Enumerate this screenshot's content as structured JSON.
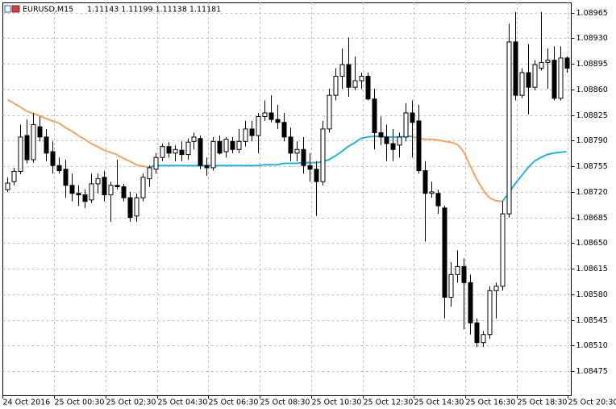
{
  "chart_data": {
    "type": "candlestick",
    "header": {
      "symbol": "EURUSD,M15",
      "quote": "1.11143 1.11199 1.11138 1.11181"
    },
    "up_color": "#ffffff",
    "down_color": "#000000",
    "outline_color": "#000000",
    "grid": true,
    "xlim": [
      -0.75,
      87.75
    ],
    "xticks": [
      {
        "value": 0,
        "label": "24 Oct 2016"
      },
      {
        "value": 8,
        "label": "25 Oct 00:30"
      },
      {
        "value": 16,
        "label": "25 Oct 02:30"
      },
      {
        "value": 24,
        "label": "25 Oct 04:30"
      },
      {
        "value": 32,
        "label": "25 Oct 06:30"
      },
      {
        "value": 40,
        "label": "25 Oct 08:30"
      },
      {
        "value": 48,
        "label": "25 Oct 10:30"
      },
      {
        "value": 56,
        "label": "25 Oct 12:30"
      },
      {
        "value": 64,
        "label": "25 Oct 14:30"
      },
      {
        "value": 72,
        "label": "25 Oct 16:30"
      },
      {
        "value": 80,
        "label": "25 Oct 18:30"
      },
      {
        "value": 88,
        "label": "25 Oct 20:30"
      }
    ],
    "ylim": [
      1.08442,
      1.08979
    ],
    "yticks": [
      1.08475,
      {
        "value": 1.0851,
        "label": "1.08510"
      },
      1.08545,
      {
        "value": 1.0858,
        "label": "1.08580"
      },
      1.08615,
      {
        "value": 1.0865,
        "label": "1.08650"
      },
      1.08685,
      {
        "value": 1.0872,
        "label": "1.08720"
      },
      1.08755,
      {
        "value": 1.0879,
        "label": "1.08790"
      },
      1.08825,
      {
        "value": 1.0886,
        "label": "1.08860"
      },
      1.08895,
      {
        "value": 1.0893,
        "label": "1.08930"
      },
      1.08965
    ],
    "open": [
      1.08723,
      1.08734,
      1.08748,
      1.08797,
      1.08764,
      1.08809,
      1.08795,
      1.08775,
      1.08756,
      1.08751,
      1.08729,
      1.08718,
      1.08716,
      1.08709,
      1.08731,
      1.0874,
      1.08716,
      1.08729,
      1.08727,
      1.08712,
      1.08687,
      1.08712,
      1.08738,
      1.08751,
      1.08767,
      1.08782,
      1.08773,
      1.08777,
      1.08771,
      1.08789,
      1.08793,
      1.08756,
      1.08753,
      1.08789,
      1.08775,
      1.08789,
      1.08778,
      1.08789,
      1.08806,
      1.08797,
      1.08823,
      1.08828,
      1.08819,
      1.08815,
      1.08795,
      1.08773,
      1.08778,
      1.08756,
      1.08751,
      1.08734,
      1.08806,
      1.08852,
      1.08878,
      1.08894,
      1.08863,
      1.08872,
      1.08878,
      1.08847,
      1.08801,
      1.08795,
      1.08786,
      1.08784,
      1.08795,
      1.08828,
      1.08817,
      1.08749,
      1.08718,
      1.08718,
      1.08698,
      1.08576,
      1.08607,
      1.08618,
      1.08596,
      1.08541,
      1.08514,
      1.08525,
      1.08585,
      1.08591,
      1.0869,
      1.08925,
      1.08852,
      1.08883,
      1.08863,
      1.08889,
      1.08897,
      1.089,
      1.08848,
      1.08903
    ],
    "high": [
      1.0874,
      1.08753,
      1.08812,
      1.08819,
      1.08828,
      1.08823,
      1.08806,
      1.08789,
      1.08767,
      1.08764,
      1.08745,
      1.08729,
      1.08723,
      1.08745,
      1.08745,
      1.08749,
      1.08734,
      1.08764,
      1.08731,
      1.0872,
      1.08718,
      1.08745,
      1.08756,
      1.08773,
      1.08786,
      1.08788,
      1.08784,
      1.08789,
      1.08793,
      1.08801,
      1.08797,
      1.08767,
      1.08795,
      1.08797,
      1.08795,
      1.08795,
      1.08806,
      1.08817,
      1.08817,
      1.08828,
      1.08845,
      1.08852,
      1.08839,
      1.08828,
      1.08808,
      1.08789,
      1.08795,
      1.08773,
      1.08762,
      1.08817,
      1.08861,
      1.08889,
      1.08916,
      1.08931,
      1.08905,
      1.08883,
      1.08883,
      1.08861,
      1.08823,
      1.08812,
      1.08806,
      1.08801,
      1.08841,
      1.08845,
      1.08839,
      1.08762,
      1.08734,
      1.08723,
      1.08701,
      1.08624,
      1.0864,
      1.08629,
      1.08607,
      1.08547,
      1.0853,
      1.08591,
      1.08596,
      1.08707,
      1.0895,
      1.08966,
      1.08889,
      1.08922,
      1.089,
      1.08966,
      1.08916,
      1.08919,
      1.08919,
      1.08905
    ],
    "low": [
      1.0872,
      1.08729,
      1.08744,
      1.08759,
      1.0876,
      1.08789,
      1.08762,
      1.08745,
      1.08745,
      1.08712,
      1.08707,
      1.08701,
      1.08698,
      1.08705,
      1.08718,
      1.08707,
      1.08679,
      1.08723,
      1.08707,
      1.08679,
      1.08679,
      1.08707,
      1.08727,
      1.08745,
      1.08762,
      1.08767,
      1.08762,
      1.08762,
      1.08764,
      1.08778,
      1.08751,
      1.08742,
      1.08749,
      1.08771,
      1.08767,
      1.08773,
      1.08773,
      1.08782,
      1.08789,
      1.08773,
      1.08817,
      1.08815,
      1.08806,
      1.08789,
      1.08762,
      1.08762,
      1.08745,
      1.08734,
      1.08687,
      1.08729,
      1.08801,
      1.08845,
      1.08861,
      1.0885,
      1.08859,
      1.08861,
      1.08845,
      1.08778,
      1.08784,
      1.08762,
      1.08762,
      1.08767,
      1.08789,
      1.08767,
      1.08745,
      1.08652,
      1.08712,
      1.0869,
      1.08547,
      1.08563,
      1.08596,
      1.08532,
      1.08525,
      1.08508,
      1.08508,
      1.08519,
      1.08547,
      1.08585,
      1.08685,
      1.08845,
      1.08848,
      1.08826,
      1.08859,
      1.08886,
      1.08861,
      1.08845,
      1.08845,
      1.08883
    ],
    "close": [
      1.08732,
      1.08748,
      1.08795,
      1.08764,
      1.08812,
      1.08795,
      1.08773,
      1.08756,
      1.08749,
      1.08729,
      1.08718,
      1.08716,
      1.08707,
      1.08731,
      1.08738,
      1.08716,
      1.08729,
      1.08727,
      1.08712,
      1.08685,
      1.08712,
      1.0874,
      1.08753,
      1.08767,
      1.08782,
      1.08773,
      1.08778,
      1.08771,
      1.08788,
      1.08795,
      1.08756,
      1.08753,
      1.08789,
      1.08773,
      1.08792,
      1.08778,
      1.08789,
      1.08806,
      1.08797,
      1.08823,
      1.08828,
      1.08819,
      1.08815,
      1.08795,
      1.08773,
      1.08778,
      1.08756,
      1.08751,
      1.08734,
      1.08806,
      1.08852,
      1.08878,
      1.08894,
      1.08863,
      1.08872,
      1.08878,
      1.08847,
      1.08801,
      1.08795,
      1.08786,
      1.08778,
      1.08795,
      1.08828,
      1.08815,
      1.08749,
      1.08718,
      1.0872,
      1.08701,
      1.08576,
      1.08607,
      1.08618,
      1.08596,
      1.08541,
      1.08514,
      1.08525,
      1.08585,
      1.08591,
      1.0869,
      1.08925,
      1.08852,
      1.08883,
      1.08863,
      1.08894,
      1.08897,
      1.089,
      1.08848,
      1.08903,
      1.08889
    ],
    "lines": [
      {
        "color": "#f4a460",
        "values": [
          1.08846,
          1.08841,
          1.08836,
          1.0883,
          1.08827,
          1.08824,
          1.0882,
          1.08817,
          1.08814,
          1.08808,
          1.08803,
          1.08797,
          1.08792,
          1.08786,
          1.08782,
          1.08777,
          1.08774,
          1.08771,
          1.08766,
          1.08762,
          1.08757,
          1.08755,
          1.08754,
          null,
          null,
          null,
          null,
          null,
          null,
          null,
          null,
          null,
          null,
          null,
          null,
          null,
          null,
          null,
          null,
          null,
          null,
          null,
          null,
          null,
          null,
          null,
          null,
          null,
          null,
          null,
          null,
          null,
          null,
          null,
          null,
          null,
          null,
          null,
          null,
          null,
          null,
          null,
          null,
          1.08796,
          1.08793,
          1.08792,
          1.08792,
          1.08791,
          1.08789,
          1.08788,
          1.08785,
          1.08775,
          1.08756,
          1.08738,
          1.08723,
          1.08712,
          1.08708,
          1.08707,
          null,
          null,
          null,
          null,
          null,
          null,
          null,
          null,
          null,
          null
        ]
      },
      {
        "color": "#1eb4e6",
        "values": [
          null,
          null,
          null,
          null,
          null,
          null,
          null,
          null,
          null,
          null,
          null,
          null,
          null,
          null,
          null,
          null,
          null,
          null,
          null,
          null,
          null,
          null,
          1.08754,
          1.08756,
          1.08756,
          1.08756,
          1.08756,
          1.08756,
          1.08756,
          1.08756,
          1.08756,
          1.08756,
          1.08756,
          1.08756,
          1.08756,
          1.08756,
          1.08756,
          1.08756,
          1.08756,
          1.08756,
          1.08757,
          1.08757,
          1.08757,
          1.08759,
          1.08759,
          1.08759,
          1.0876,
          1.0876,
          1.0876,
          1.08761,
          1.08764,
          1.08769,
          1.08775,
          1.08782,
          1.08787,
          1.08793,
          1.08795,
          1.08796,
          1.08796,
          1.08795,
          1.08795,
          1.08795,
          1.08796,
          1.08796,
          null,
          null,
          null,
          null,
          null,
          null,
          null,
          null,
          null,
          null,
          null,
          null,
          null,
          1.08707,
          1.08718,
          1.08731,
          1.08742,
          1.08753,
          1.08762,
          1.08767,
          1.08771,
          1.08773,
          1.08774,
          1.08775
        ]
      }
    ]
  }
}
